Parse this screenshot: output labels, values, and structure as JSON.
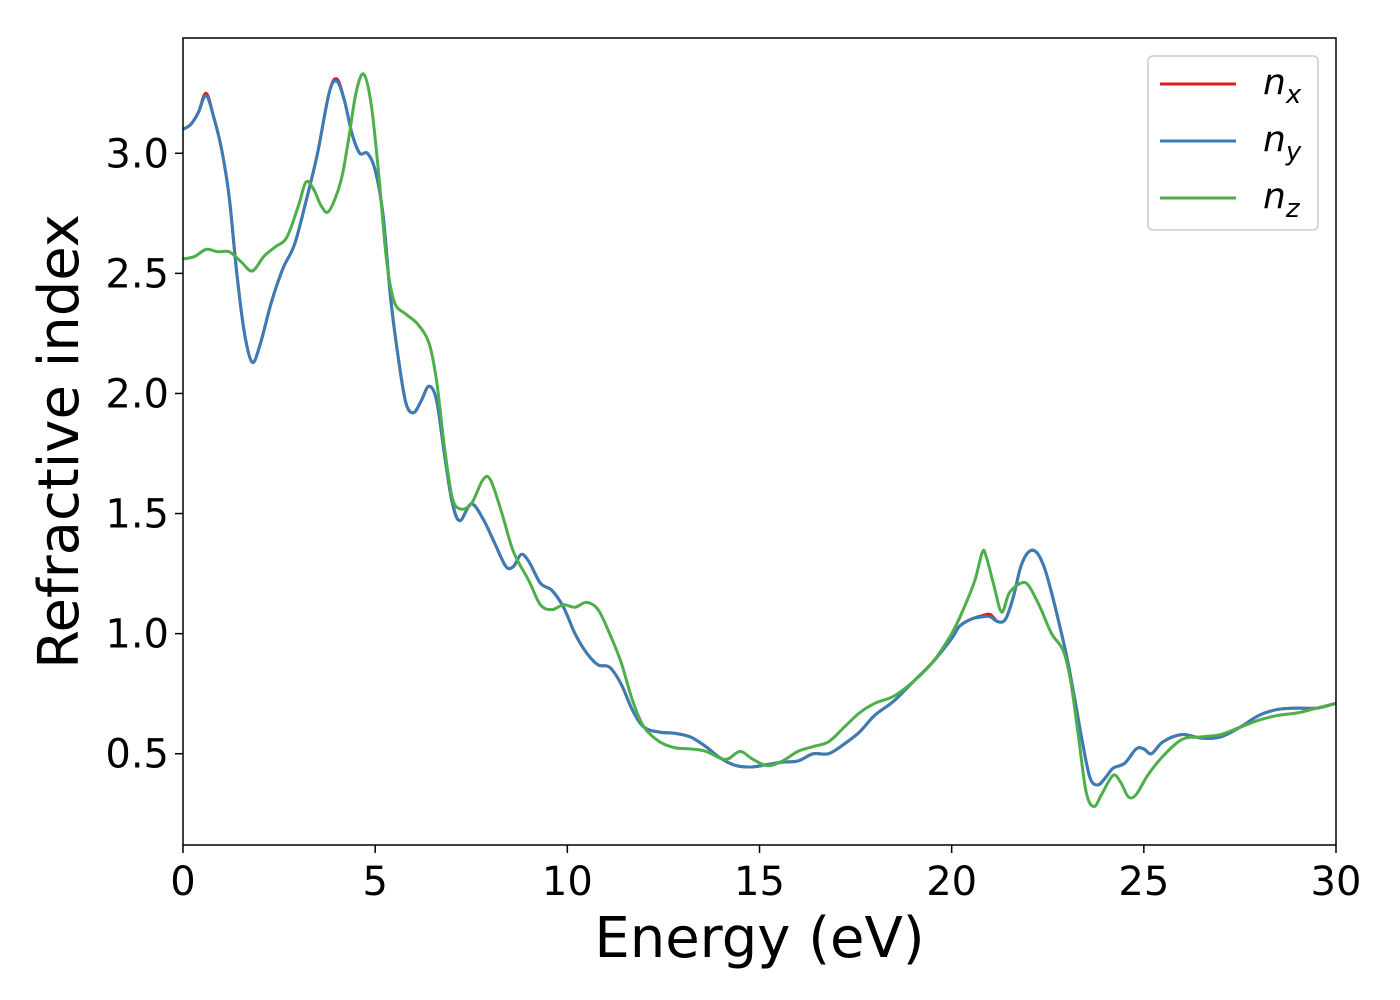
{
  "chart_data": {
    "type": "line",
    "title": "",
    "xlabel": "Energy (eV)",
    "ylabel": "Refractive index",
    "xlim": [
      0,
      30
    ],
    "ylim": [
      0.12,
      3.48
    ],
    "xticks": [
      0,
      5,
      10,
      15,
      20,
      25,
      30
    ],
    "xtick_labels": [
      "0",
      "5",
      "10",
      "15",
      "20",
      "25",
      "30"
    ],
    "yticks": [
      0.5,
      1.0,
      1.5,
      2.0,
      2.5,
      3.0
    ],
    "ytick_labels": [
      "0.5",
      "1.0",
      "1.5",
      "2.0",
      "2.5",
      "3.0"
    ],
    "grid": false,
    "legend_position": "top-right",
    "series": [
      {
        "name": "n_x",
        "legend_main": "n",
        "legend_sub": "x",
        "color": "#e41a1c",
        "points": [
          [
            0,
            3.1
          ],
          [
            0.2,
            3.12
          ],
          [
            0.4,
            3.17
          ],
          [
            0.6,
            3.25
          ],
          [
            0.8,
            3.15
          ],
          [
            1.0,
            3.02
          ],
          [
            1.2,
            2.82
          ],
          [
            1.4,
            2.5
          ],
          [
            1.6,
            2.25
          ],
          [
            1.8,
            2.13
          ],
          [
            2.0,
            2.2
          ],
          [
            2.3,
            2.38
          ],
          [
            2.6,
            2.52
          ],
          [
            2.9,
            2.62
          ],
          [
            3.2,
            2.8
          ],
          [
            3.5,
            3.0
          ],
          [
            3.8,
            3.25
          ],
          [
            4.0,
            3.31
          ],
          [
            4.2,
            3.22
          ],
          [
            4.4,
            3.08
          ],
          [
            4.6,
            3.0
          ],
          [
            4.8,
            3.0
          ],
          [
            5.0,
            2.93
          ],
          [
            5.2,
            2.75
          ],
          [
            5.4,
            2.4
          ],
          [
            5.6,
            2.15
          ],
          [
            5.8,
            1.96
          ],
          [
            6.0,
            1.92
          ],
          [
            6.2,
            1.97
          ],
          [
            6.4,
            2.03
          ],
          [
            6.6,
            1.97
          ],
          [
            6.8,
            1.75
          ],
          [
            7.0,
            1.55
          ],
          [
            7.2,
            1.47
          ],
          [
            7.5,
            1.54
          ],
          [
            7.8,
            1.48
          ],
          [
            8.1,
            1.38
          ],
          [
            8.4,
            1.28
          ],
          [
            8.6,
            1.28
          ],
          [
            8.8,
            1.33
          ],
          [
            9.0,
            1.3
          ],
          [
            9.3,
            1.21
          ],
          [
            9.6,
            1.18
          ],
          [
            9.9,
            1.11
          ],
          [
            10.2,
            1.0
          ],
          [
            10.5,
            0.92
          ],
          [
            10.8,
            0.87
          ],
          [
            11.1,
            0.86
          ],
          [
            11.4,
            0.79
          ],
          [
            11.7,
            0.68
          ],
          [
            12.0,
            0.61
          ],
          [
            12.4,
            0.59
          ],
          [
            12.8,
            0.585
          ],
          [
            13.2,
            0.57
          ],
          [
            13.6,
            0.53
          ],
          [
            14.0,
            0.48
          ],
          [
            14.4,
            0.45
          ],
          [
            14.8,
            0.445
          ],
          [
            15.2,
            0.455
          ],
          [
            15.6,
            0.465
          ],
          [
            16.0,
            0.47
          ],
          [
            16.4,
            0.5
          ],
          [
            16.8,
            0.5
          ],
          [
            17.2,
            0.54
          ],
          [
            17.6,
            0.59
          ],
          [
            18.0,
            0.66
          ],
          [
            18.5,
            0.72
          ],
          [
            19.0,
            0.8
          ],
          [
            19.5,
            0.88
          ],
          [
            20.0,
            0.98
          ],
          [
            20.2,
            1.03
          ],
          [
            20.5,
            1.06
          ],
          [
            20.8,
            1.075
          ],
          [
            21.0,
            1.08
          ],
          [
            21.2,
            1.05
          ],
          [
            21.4,
            1.06
          ],
          [
            21.6,
            1.15
          ],
          [
            21.8,
            1.28
          ],
          [
            22.0,
            1.34
          ],
          [
            22.2,
            1.34
          ],
          [
            22.4,
            1.28
          ],
          [
            22.6,
            1.17
          ],
          [
            22.8,
            1.04
          ],
          [
            23.0,
            0.9
          ],
          [
            23.2,
            0.73
          ],
          [
            23.4,
            0.55
          ],
          [
            23.6,
            0.4
          ],
          [
            23.8,
            0.37
          ],
          [
            24.0,
            0.4
          ],
          [
            24.2,
            0.44
          ],
          [
            24.5,
            0.46
          ],
          [
            24.8,
            0.52
          ],
          [
            25.0,
            0.52
          ],
          [
            25.2,
            0.5
          ],
          [
            25.5,
            0.55
          ],
          [
            26.0,
            0.58
          ],
          [
            26.5,
            0.565
          ],
          [
            27.0,
            0.57
          ],
          [
            27.5,
            0.61
          ],
          [
            28.0,
            0.66
          ],
          [
            28.5,
            0.685
          ],
          [
            29.0,
            0.69
          ],
          [
            29.5,
            0.69
          ],
          [
            30.0,
            0.71
          ]
        ]
      },
      {
        "name": "n_y",
        "legend_main": "n",
        "legend_sub": "y",
        "color": "#377eb8",
        "points": [
          [
            0,
            3.1
          ],
          [
            0.2,
            3.12
          ],
          [
            0.4,
            3.17
          ],
          [
            0.6,
            3.24
          ],
          [
            0.8,
            3.15
          ],
          [
            1.0,
            3.02
          ],
          [
            1.2,
            2.82
          ],
          [
            1.4,
            2.5
          ],
          [
            1.6,
            2.25
          ],
          [
            1.8,
            2.13
          ],
          [
            2.0,
            2.2
          ],
          [
            2.3,
            2.38
          ],
          [
            2.6,
            2.52
          ],
          [
            2.9,
            2.62
          ],
          [
            3.2,
            2.8
          ],
          [
            3.5,
            3.0
          ],
          [
            3.8,
            3.25
          ],
          [
            4.0,
            3.3
          ],
          [
            4.2,
            3.22
          ],
          [
            4.4,
            3.08
          ],
          [
            4.6,
            3.0
          ],
          [
            4.8,
            3.0
          ],
          [
            5.0,
            2.93
          ],
          [
            5.2,
            2.75
          ],
          [
            5.4,
            2.4
          ],
          [
            5.6,
            2.15
          ],
          [
            5.8,
            1.96
          ],
          [
            6.0,
            1.92
          ],
          [
            6.2,
            1.97
          ],
          [
            6.4,
            2.03
          ],
          [
            6.6,
            1.97
          ],
          [
            6.8,
            1.75
          ],
          [
            7.0,
            1.55
          ],
          [
            7.2,
            1.47
          ],
          [
            7.5,
            1.54
          ],
          [
            7.8,
            1.48
          ],
          [
            8.1,
            1.38
          ],
          [
            8.4,
            1.28
          ],
          [
            8.6,
            1.28
          ],
          [
            8.8,
            1.33
          ],
          [
            9.0,
            1.3
          ],
          [
            9.3,
            1.21
          ],
          [
            9.6,
            1.18
          ],
          [
            9.9,
            1.11
          ],
          [
            10.2,
            1.0
          ],
          [
            10.5,
            0.92
          ],
          [
            10.8,
            0.87
          ],
          [
            11.1,
            0.86
          ],
          [
            11.4,
            0.79
          ],
          [
            11.7,
            0.68
          ],
          [
            12.0,
            0.61
          ],
          [
            12.4,
            0.59
          ],
          [
            12.8,
            0.585
          ],
          [
            13.2,
            0.57
          ],
          [
            13.6,
            0.53
          ],
          [
            14.0,
            0.48
          ],
          [
            14.4,
            0.45
          ],
          [
            14.8,
            0.445
          ],
          [
            15.2,
            0.455
          ],
          [
            15.6,
            0.465
          ],
          [
            16.0,
            0.47
          ],
          [
            16.4,
            0.5
          ],
          [
            16.8,
            0.5
          ],
          [
            17.2,
            0.54
          ],
          [
            17.6,
            0.59
          ],
          [
            18.0,
            0.66
          ],
          [
            18.5,
            0.72
          ],
          [
            19.0,
            0.8
          ],
          [
            19.5,
            0.88
          ],
          [
            20.0,
            0.98
          ],
          [
            20.2,
            1.03
          ],
          [
            20.5,
            1.06
          ],
          [
            20.8,
            1.07
          ],
          [
            21.0,
            1.07
          ],
          [
            21.2,
            1.05
          ],
          [
            21.4,
            1.06
          ],
          [
            21.6,
            1.15
          ],
          [
            21.8,
            1.28
          ],
          [
            22.0,
            1.34
          ],
          [
            22.2,
            1.34
          ],
          [
            22.4,
            1.28
          ],
          [
            22.6,
            1.17
          ],
          [
            22.8,
            1.04
          ],
          [
            23.0,
            0.9
          ],
          [
            23.2,
            0.73
          ],
          [
            23.4,
            0.55
          ],
          [
            23.6,
            0.4
          ],
          [
            23.8,
            0.37
          ],
          [
            24.0,
            0.4
          ],
          [
            24.2,
            0.44
          ],
          [
            24.5,
            0.46
          ],
          [
            24.8,
            0.52
          ],
          [
            25.0,
            0.52
          ],
          [
            25.2,
            0.5
          ],
          [
            25.5,
            0.55
          ],
          [
            26.0,
            0.58
          ],
          [
            26.5,
            0.565
          ],
          [
            27.0,
            0.57
          ],
          [
            27.5,
            0.61
          ],
          [
            28.0,
            0.66
          ],
          [
            28.5,
            0.685
          ],
          [
            29.0,
            0.69
          ],
          [
            29.5,
            0.69
          ],
          [
            30.0,
            0.71
          ]
        ]
      },
      {
        "name": "n_z",
        "legend_main": "n",
        "legend_sub": "z",
        "color": "#4daf4a",
        "points": [
          [
            0,
            2.56
          ],
          [
            0.3,
            2.57
          ],
          [
            0.6,
            2.6
          ],
          [
            0.9,
            2.59
          ],
          [
            1.2,
            2.59
          ],
          [
            1.5,
            2.55
          ],
          [
            1.8,
            2.51
          ],
          [
            2.1,
            2.57
          ],
          [
            2.4,
            2.61
          ],
          [
            2.7,
            2.65
          ],
          [
            3.0,
            2.78
          ],
          [
            3.2,
            2.88
          ],
          [
            3.4,
            2.85
          ],
          [
            3.6,
            2.78
          ],
          [
            3.8,
            2.76
          ],
          [
            4.1,
            2.88
          ],
          [
            4.3,
            3.05
          ],
          [
            4.5,
            3.25
          ],
          [
            4.7,
            3.33
          ],
          [
            4.9,
            3.2
          ],
          [
            5.1,
            2.9
          ],
          [
            5.3,
            2.55
          ],
          [
            5.5,
            2.38
          ],
          [
            5.8,
            2.33
          ],
          [
            6.1,
            2.29
          ],
          [
            6.4,
            2.21
          ],
          [
            6.6,
            2.05
          ],
          [
            6.8,
            1.78
          ],
          [
            7.0,
            1.57
          ],
          [
            7.2,
            1.52
          ],
          [
            7.5,
            1.54
          ],
          [
            7.8,
            1.64
          ],
          [
            8.0,
            1.64
          ],
          [
            8.3,
            1.5
          ],
          [
            8.6,
            1.34
          ],
          [
            9.0,
            1.22
          ],
          [
            9.3,
            1.12
          ],
          [
            9.6,
            1.1
          ],
          [
            9.9,
            1.12
          ],
          [
            10.2,
            1.11
          ],
          [
            10.5,
            1.13
          ],
          [
            10.8,
            1.1
          ],
          [
            11.1,
            1.0
          ],
          [
            11.4,
            0.88
          ],
          [
            11.7,
            0.72
          ],
          [
            12.0,
            0.61
          ],
          [
            12.4,
            0.55
          ],
          [
            12.8,
            0.525
          ],
          [
            13.2,
            0.52
          ],
          [
            13.6,
            0.51
          ],
          [
            14.0,
            0.48
          ],
          [
            14.2,
            0.48
          ],
          [
            14.5,
            0.51
          ],
          [
            14.8,
            0.48
          ],
          [
            15.2,
            0.45
          ],
          [
            15.6,
            0.47
          ],
          [
            16.0,
            0.51
          ],
          [
            16.4,
            0.53
          ],
          [
            16.8,
            0.55
          ],
          [
            17.2,
            0.61
          ],
          [
            17.6,
            0.67
          ],
          [
            18.0,
            0.71
          ],
          [
            18.5,
            0.74
          ],
          [
            19.0,
            0.8
          ],
          [
            19.5,
            0.88
          ],
          [
            20.0,
            1.0
          ],
          [
            20.3,
            1.1
          ],
          [
            20.6,
            1.22
          ],
          [
            20.8,
            1.34
          ],
          [
            20.9,
            1.32
          ],
          [
            21.1,
            1.2
          ],
          [
            21.3,
            1.09
          ],
          [
            21.5,
            1.17
          ],
          [
            21.8,
            1.21
          ],
          [
            22.0,
            1.2
          ],
          [
            22.3,
            1.11
          ],
          [
            22.6,
            1.0
          ],
          [
            22.9,
            0.93
          ],
          [
            23.1,
            0.8
          ],
          [
            23.3,
            0.57
          ],
          [
            23.5,
            0.34
          ],
          [
            23.7,
            0.28
          ],
          [
            23.9,
            0.33
          ],
          [
            24.2,
            0.41
          ],
          [
            24.4,
            0.38
          ],
          [
            24.6,
            0.32
          ],
          [
            24.8,
            0.33
          ],
          [
            25.1,
            0.41
          ],
          [
            25.5,
            0.49
          ],
          [
            26.0,
            0.56
          ],
          [
            26.5,
            0.57
          ],
          [
            27.0,
            0.58
          ],
          [
            27.5,
            0.61
          ],
          [
            28.0,
            0.64
          ],
          [
            28.5,
            0.66
          ],
          [
            29.0,
            0.67
          ],
          [
            29.5,
            0.69
          ],
          [
            30.0,
            0.71
          ]
        ]
      }
    ]
  }
}
